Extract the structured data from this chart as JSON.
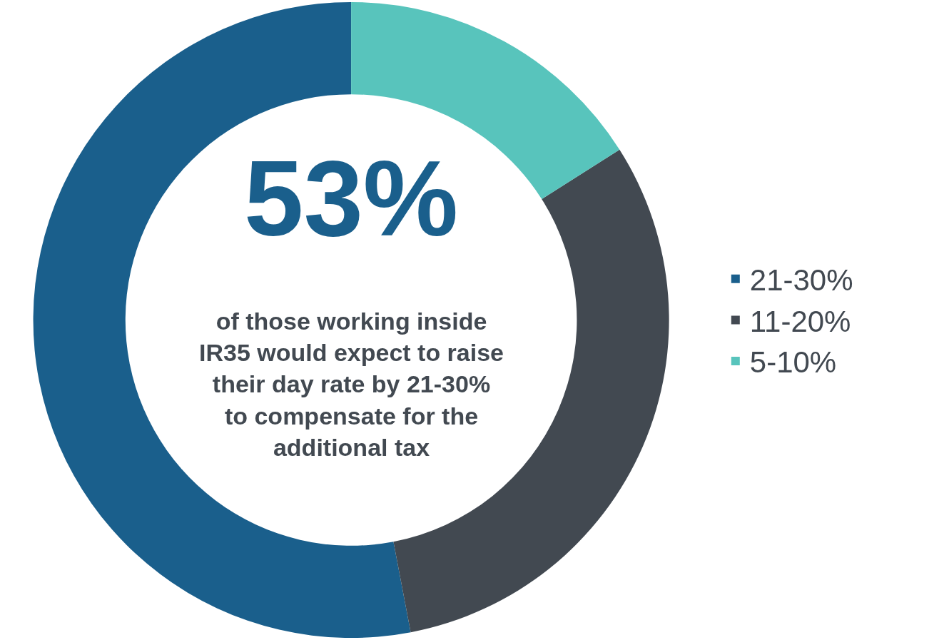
{
  "chart_data": {
    "type": "donut",
    "categories": [
      "21-30%",
      "11-20%",
      "5-10%"
    ],
    "values": [
      53,
      31,
      16
    ],
    "colors": [
      "#1a5f8c",
      "#424951",
      "#58c4bc"
    ],
    "legend": "right",
    "annotations": [
      "53%",
      "of those working inside\nIR35 would expect to raise\ntheir day rate by 21-30%\nto compensate for the\nadditional tax"
    ]
  }
}
